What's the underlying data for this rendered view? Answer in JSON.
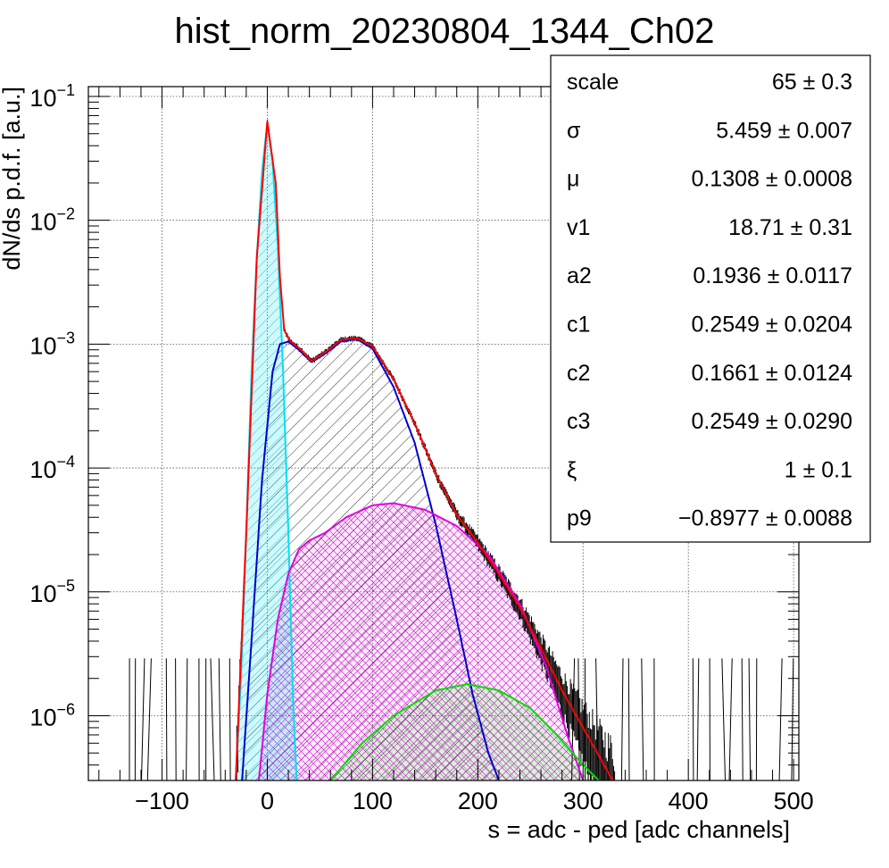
{
  "chart_data": {
    "type": "histogram-fit",
    "title": "hist_norm_20230804_1344_Ch02",
    "xlabel": "s = adc - ped [adc channels]",
    "ylabel": "dN/ds p.d.f. [a.u.]",
    "xlim": [
      -170,
      505
    ],
    "ylim": [
      3e-07,
      0.12
    ],
    "y_log": true,
    "grid": true,
    "x_ticks": [
      {
        "value": -100,
        "label": "−100"
      },
      {
        "value": 0,
        "label": "0"
      },
      {
        "value": 100,
        "label": "100"
      },
      {
        "value": 200,
        "label": "200"
      },
      {
        "value": 300,
        "label": "300"
      },
      {
        "value": 400,
        "label": "400"
      },
      {
        "value": 500,
        "label": "500"
      }
    ],
    "y_ticks": [
      {
        "value": 1e-06,
        "base": "10",
        "exp": "−6"
      },
      {
        "value": 1e-05,
        "base": "10",
        "exp": "−5"
      },
      {
        "value": 0.0001,
        "base": "10",
        "exp": "−4"
      },
      {
        "value": 0.001,
        "base": "10",
        "exp": "−3"
      },
      {
        "value": 0.01,
        "base": "10",
        "exp": "−2"
      },
      {
        "value": 0.1,
        "base": "10",
        "exp": "−1"
      }
    ],
    "series": [
      {
        "key": "pedestal",
        "color": "#00e0f0",
        "hatch": true,
        "points": [
          [
            -30,
            3e-07
          ],
          [
            -25,
            2e-06
          ],
          [
            -20,
            3e-05
          ],
          [
            -15,
            0.0006
          ],
          [
            -10,
            0.005
          ],
          [
            -5,
            0.025
          ],
          [
            0,
            0.061
          ],
          [
            5,
            0.03
          ],
          [
            10,
            0.006
          ],
          [
            15,
            0.0006
          ],
          [
            20,
            3e-05
          ],
          [
            25,
            1e-06
          ],
          [
            28,
            3e-07
          ]
        ]
      },
      {
        "key": "one_pe",
        "color": "#0000cc",
        "hatch": true,
        "points": [
          [
            -24,
            3e-07
          ],
          [
            -15,
            4e-06
          ],
          [
            -5,
            8e-05
          ],
          [
            5,
            0.0006
          ],
          [
            12,
            0.001
          ],
          [
            20,
            0.00105
          ],
          [
            30,
            0.0009
          ],
          [
            42,
            0.00072
          ],
          [
            55,
            0.00084
          ],
          [
            70,
            0.00105
          ],
          [
            85,
            0.0011
          ],
          [
            100,
            0.00092
          ],
          [
            120,
            0.00045
          ],
          [
            140,
            0.00016
          ],
          [
            160,
            3.5e-05
          ],
          [
            180,
            6e-06
          ],
          [
            195,
            1.5e-06
          ],
          [
            210,
            5e-07
          ],
          [
            220,
            3e-07
          ]
        ]
      },
      {
        "key": "two_pe",
        "color": "#e000e0",
        "hatch": true,
        "points": [
          [
            -8,
            3e-07
          ],
          [
            0,
            1.5e-06
          ],
          [
            10,
            6e-06
          ],
          [
            20,
            1.4e-05
          ],
          [
            30,
            2.2e-05
          ],
          [
            40,
            2.6e-05
          ],
          [
            55,
            3e-05
          ],
          [
            75,
            4e-05
          ],
          [
            100,
            5e-05
          ],
          [
            120,
            5.2e-05
          ],
          [
            150,
            4.6e-05
          ],
          [
            180,
            3.4e-05
          ],
          [
            210,
            2e-05
          ],
          [
            240,
            8e-06
          ],
          [
            265,
            2.5e-06
          ],
          [
            285,
            7e-07
          ],
          [
            300,
            3e-07
          ]
        ]
      },
      {
        "key": "three_pe",
        "color": "#00dd00",
        "hatch": true,
        "points": [
          [
            60,
            3e-07
          ],
          [
            90,
            6e-07
          ],
          [
            120,
            1e-06
          ],
          [
            160,
            1.6e-06
          ],
          [
            190,
            1.8e-06
          ],
          [
            220,
            1.6e-06
          ],
          [
            250,
            1.15e-06
          ],
          [
            275,
            7e-07
          ],
          [
            300,
            4e-07
          ],
          [
            315,
            3e-07
          ]
        ]
      },
      {
        "key": "total_fit",
        "color": "#ff0000",
        "hatch": false,
        "points": [
          [
            -30,
            3e-07
          ],
          [
            -20,
            3e-05
          ],
          [
            -10,
            0.005
          ],
          [
            0,
            0.063
          ],
          [
            8,
            0.02
          ],
          [
            12,
            0.0035
          ],
          [
            16,
            0.0013
          ],
          [
            22,
            0.00105
          ],
          [
            32,
            0.0009
          ],
          [
            42,
            0.00073
          ],
          [
            55,
            0.00086
          ],
          [
            70,
            0.00108
          ],
          [
            85,
            0.00112
          ],
          [
            100,
            0.00096
          ],
          [
            120,
            0.00052
          ],
          [
            140,
            0.00023
          ],
          [
            160,
            9e-05
          ],
          [
            180,
            4.2e-05
          ],
          [
            200,
            2.5e-05
          ],
          [
            220,
            1.4e-05
          ],
          [
            240,
            7.5e-06
          ],
          [
            260,
            3.5e-06
          ],
          [
            280,
            1.6e-06
          ],
          [
            300,
            8e-07
          ],
          [
            320,
            4e-07
          ],
          [
            340,
            2e-07
          ]
        ]
      }
    ]
  },
  "stats_box": {
    "rows": [
      {
        "name": "scale",
        "value": "65 ± 0.3"
      },
      {
        "name": "σ",
        "value": "5.459 ± 0.007"
      },
      {
        "name": "μ",
        "value": "0.1308 ± 0.0008"
      },
      {
        "name": "v1",
        "value": "18.71 ± 0.31"
      },
      {
        "name": "a2",
        "value": "0.1936 ± 0.0117"
      },
      {
        "name": "c1",
        "value": "0.2549 ± 0.0204"
      },
      {
        "name": "c2",
        "value": "0.1661 ± 0.0124"
      },
      {
        "name": "c3",
        "value": "0.2549 ± 0.0290"
      },
      {
        "name": "ξ",
        "value": "1 ± 0.1"
      },
      {
        "name": "p9",
        "value": "−0.8977 ± 0.0088"
      }
    ]
  }
}
